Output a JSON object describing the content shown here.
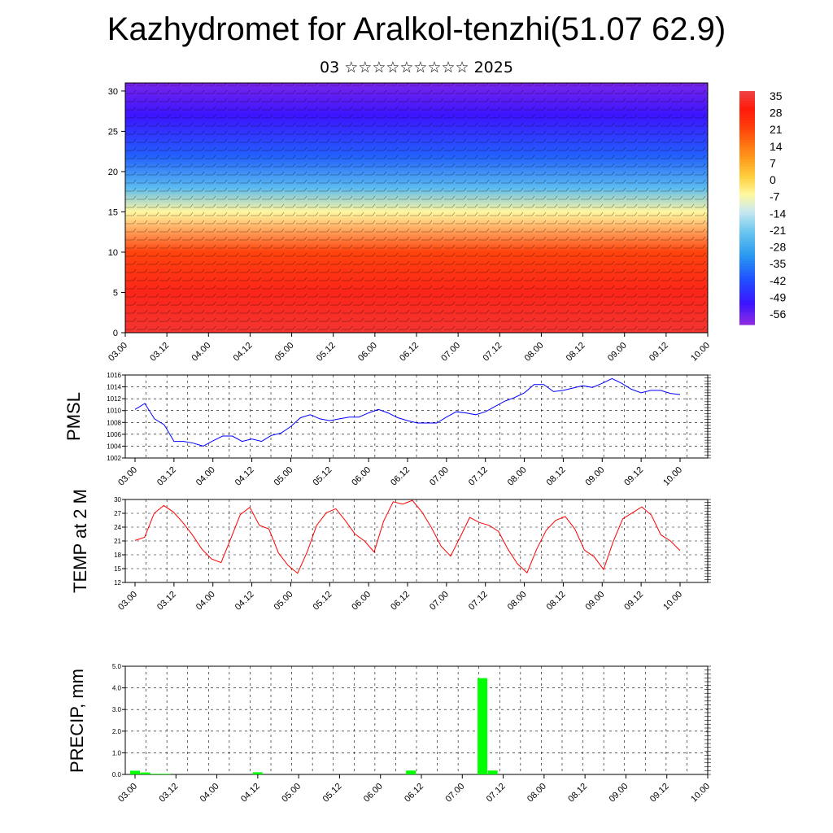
{
  "title": "Kazhydromet for Aralkol-tenzhi(51.07 62.9)",
  "subtitle": "03 ☆☆☆☆☆☆☆☆☆ 2025",
  "time_labels": [
    "03.00",
    "03.12",
    "04.00",
    "04.12",
    "05.00",
    "05.12",
    "06.00",
    "06.12",
    "07.00",
    "07.12",
    "08.00",
    "08.12",
    "09.00",
    "09.12",
    "10.00"
  ],
  "colors": {
    "pmsl": "#0000ff",
    "temp": "#ff0000",
    "precip": "#00ff00"
  },
  "chart_data": [
    {
      "type": "heatmap",
      "title": "Kazhydromet for Aralkol-tenzhi(51.07 62.9)",
      "y_ticks": [
        0,
        5,
        10,
        15,
        20,
        25,
        30
      ],
      "ylim": [
        0,
        31
      ],
      "x_tick_labels": [
        "03.00",
        "03.12",
        "04.00",
        "04.12",
        "05.00",
        "05.12",
        "06.00",
        "06.12",
        "07.00",
        "07.12",
        "08.00",
        "08.12",
        "09.00",
        "09.12",
        "10.00"
      ],
      "colorbar_labels": [
        "35",
        "28",
        "21",
        "14",
        "7",
        "0",
        "-7",
        "-14",
        "-21",
        "-28",
        "-35",
        "-42",
        "-49",
        "-56"
      ],
      "overlay": "wind barbs",
      "temperature_bands": [
        {
          "level": 0,
          "value": 33
        },
        {
          "level": 5,
          "value": 30
        },
        {
          "level": 10,
          "value": 20
        },
        {
          "level": 15,
          "value": -7
        },
        {
          "level": 18,
          "value": -25
        },
        {
          "level": 22,
          "value": -40
        },
        {
          "level": 27,
          "value": -52
        },
        {
          "level": 31,
          "value": -58
        }
      ]
    },
    {
      "type": "line",
      "ylabel": "PMSL",
      "ylim": [
        1002,
        1016
      ],
      "y_ticks": [
        "1002",
        "1004",
        "1006",
        "1008",
        "1010",
        "1012",
        "1014",
        "1016"
      ],
      "x_tick_labels": [
        "03.00",
        "03.12",
        "04.00",
        "04.12",
        "05.00",
        "05.12",
        "06.00",
        "06.12",
        "07.00",
        "07.12",
        "08.00",
        "08.12",
        "09.00",
        "09.12",
        "10.00"
      ],
      "values": [
        1010.2,
        1011.2,
        1008.6,
        1007.6,
        1004.8,
        1004.8,
        1004.5,
        1004.0,
        1004.9,
        1005.7,
        1005.7,
        1004.8,
        1005.2,
        1004.8,
        1005.8,
        1006.2,
        1007.3,
        1008.8,
        1009.3,
        1008.6,
        1008.3,
        1008.6,
        1008.9,
        1008.9,
        1009.6,
        1010.2,
        1009.6,
        1008.8,
        1008.3,
        1007.9,
        1007.9,
        1007.9,
        1008.9,
        1009.8,
        1009.6,
        1009.3,
        1009.8,
        1010.7,
        1011.6,
        1012.2,
        1013.0,
        1014.4,
        1014.4,
        1013.2,
        1013.4,
        1013.8,
        1014.2,
        1013.9,
        1014.6,
        1015.4,
        1014.6,
        1013.6,
        1013.0,
        1013.4,
        1013.4,
        1012.9,
        1012.7
      ],
      "grid": true
    },
    {
      "type": "line",
      "ylabel": "TEMP at 2 M",
      "ylim": [
        12,
        30
      ],
      "y_ticks": [
        "12",
        "15",
        "18",
        "21",
        "24",
        "27",
        "30"
      ],
      "x_tick_labels": [
        "03.00",
        "03.12",
        "04.00",
        "04.12",
        "05.00",
        "05.12",
        "06.00",
        "06.12",
        "07.00",
        "07.12",
        "08.00",
        "08.12",
        "09.00",
        "09.12",
        "10.00"
      ],
      "values": [
        21.1,
        21.8,
        27.0,
        28.7,
        27.3,
        25.0,
        22.3,
        19.2,
        17.1,
        16.3,
        21.4,
        26.7,
        28.3,
        24.4,
        23.6,
        18.4,
        15.7,
        14.0,
        18.6,
        24.4,
        27.1,
        28.0,
        25.4,
        22.5,
        21.0,
        18.6,
        25.3,
        29.5,
        29.0,
        29.8,
        27.3,
        23.9,
        19.9,
        17.7,
        21.8,
        26.1,
        25.0,
        24.4,
        23.1,
        19.2,
        16.0,
        14.1,
        19.2,
        23.3,
        25.5,
        26.3,
        23.6,
        19.0,
        17.6,
        14.8,
        20.8,
        25.8,
        27.1,
        28.4,
        26.6,
        22.3,
        21.0,
        18.9
      ],
      "grid": true
    },
    {
      "type": "bar",
      "ylabel": "PRECIP, mm",
      "ylim": [
        0,
        5
      ],
      "y_ticks": [
        "0.0",
        "1.0",
        "2.0",
        "3.0",
        "4.0",
        "5.0"
      ],
      "x_tick_labels": [
        "03.00",
        "03.12",
        "04.00",
        "04.12",
        "05.00",
        "05.12",
        "06.00",
        "06.12",
        "07.00",
        "07.12",
        "08.00",
        "08.12",
        "09.00",
        "09.12",
        "10.00"
      ],
      "bars": [
        {
          "t": 0,
          "value": 0.17
        },
        {
          "t": 1,
          "value": 0.09
        },
        {
          "t": 2,
          "value": 0.03
        },
        {
          "t": 3,
          "value": 0.03
        },
        {
          "t": 12,
          "value": 0.1
        },
        {
          "t": 27,
          "value": 0.18
        },
        {
          "t": 34,
          "value": 4.45
        },
        {
          "t": 35,
          "value": 0.18
        }
      ],
      "grid": true
    }
  ]
}
